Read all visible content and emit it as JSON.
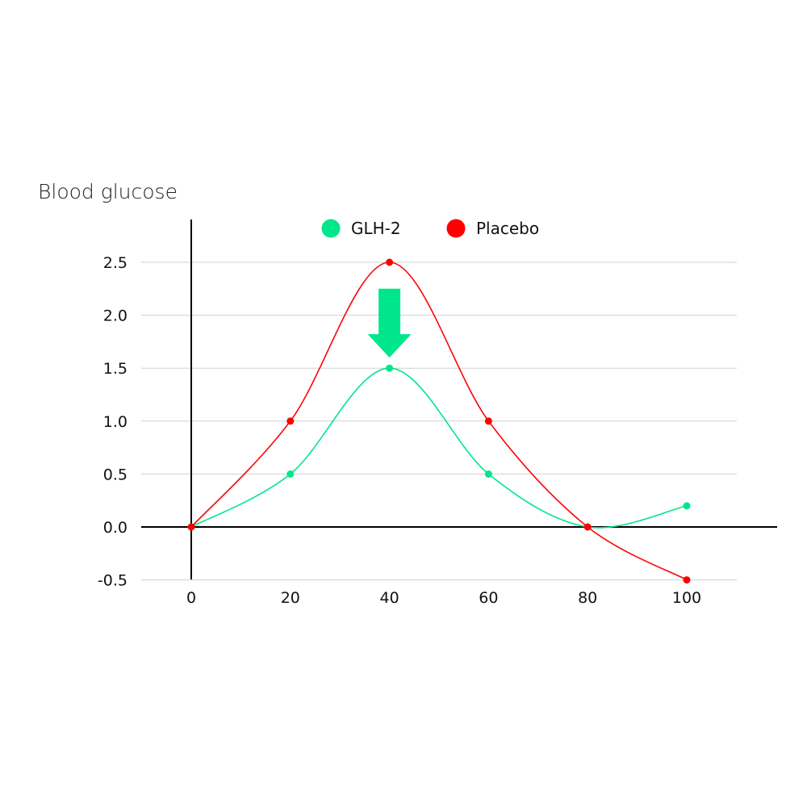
{
  "chart_data": {
    "type": "line",
    "title": "",
    "xlabel": "",
    "ylabel": "Blood glucose",
    "x": [
      0,
      20,
      40,
      60,
      80,
      100
    ],
    "xlim": [
      -10,
      110
    ],
    "ylim": [
      -0.5,
      2.5
    ],
    "xticks": [
      "0",
      "20",
      "40",
      "60",
      "80",
      "100"
    ],
    "yticks": [
      "-0.5",
      "0.0",
      "0.5",
      "1.0",
      "1.5",
      "2.0",
      "2.5"
    ],
    "grid": "horizontal",
    "legend_placement": "top-center",
    "smoothed": true,
    "series": [
      {
        "name": "GLH-2",
        "color": "#00e68a",
        "values": [
          0,
          0.5,
          1.5,
          0.5,
          0,
          0.2
        ]
      },
      {
        "name": "Placebo",
        "color": "#ff0000",
        "values": [
          0,
          1.0,
          2.5,
          1.0,
          0,
          -0.5
        ]
      }
    ],
    "annotations": [
      {
        "type": "arrow-down",
        "color": "#00e68a",
        "x": 40,
        "from": 2.25,
        "to": 1.6
      }
    ]
  }
}
